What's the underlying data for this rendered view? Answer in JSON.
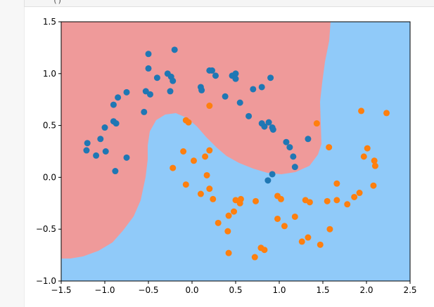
{
  "notebook": {
    "cell_code_fragment": "()"
  },
  "chart_data": {
    "type": "scatter",
    "xlim": [
      -1.5,
      2.5
    ],
    "ylim": [
      -1.0,
      1.5
    ],
    "x_ticks": [
      "−1.5",
      "−1.0",
      "−0.5",
      "0.0",
      "0.5",
      "1.0",
      "1.5",
      "2.0",
      "2.5"
    ],
    "x_tick_values": [
      -1.5,
      -1.0,
      -0.5,
      0.0,
      0.5,
      1.0,
      1.5,
      2.0,
      2.5
    ],
    "y_ticks": [
      "−1.0",
      "−0.5",
      "0.0",
      "0.5",
      "1.0",
      "1.5"
    ],
    "y_tick_values": [
      -1.0,
      -0.5,
      0.0,
      0.5,
      1.0,
      1.5
    ],
    "grid": false,
    "decision_regions": {
      "class0_color": "#ef9a9a",
      "class1_color": "#90caf9"
    },
    "series": [
      {
        "color": "#1f77b4",
        "points": [
          [
            -0.5,
            1.19
          ],
          [
            -0.2,
            1.23
          ],
          [
            -0.5,
            1.05
          ],
          [
            -0.4,
            0.96
          ],
          [
            -0.28,
            1.0
          ],
          [
            -0.24,
            0.97
          ],
          [
            -0.22,
            0.93
          ],
          [
            -0.53,
            0.83
          ],
          [
            -0.48,
            0.8
          ],
          [
            -0.25,
            0.83
          ],
          [
            -0.55,
            0.63
          ],
          [
            -0.75,
            0.82
          ],
          [
            -0.85,
            0.77
          ],
          [
            -0.9,
            0.7
          ],
          [
            -0.9,
            0.54
          ],
          [
            -0.87,
            0.52
          ],
          [
            -1.0,
            0.48
          ],
          [
            -1.05,
            0.37
          ],
          [
            -1.2,
            0.33
          ],
          [
            -1.21,
            0.26
          ],
          [
            -1.1,
            0.21
          ],
          [
            -0.99,
            0.25
          ],
          [
            -0.75,
            0.19
          ],
          [
            -0.88,
            0.06
          ],
          [
            0.1,
            0.87
          ],
          [
            0.11,
            0.84
          ],
          [
            0.2,
            1.03
          ],
          [
            0.23,
            1.03
          ],
          [
            0.27,
            0.98
          ],
          [
            0.38,
            0.78
          ],
          [
            0.46,
            0.98
          ],
          [
            0.5,
            1.0
          ],
          [
            0.5,
            0.95
          ],
          [
            0.55,
            0.72
          ],
          [
            0.65,
            0.59
          ],
          [
            0.7,
            0.85
          ],
          [
            0.8,
            0.87
          ],
          [
            0.9,
            0.96
          ],
          [
            0.8,
            0.52
          ],
          [
            0.83,
            0.49
          ],
          [
            0.88,
            0.53
          ],
          [
            0.92,
            0.48
          ],
          [
            0.93,
            0.46
          ],
          [
            1.08,
            0.34
          ],
          [
            1.12,
            0.29
          ],
          [
            1.16,
            0.2
          ],
          [
            1.18,
            0.1
          ],
          [
            1.33,
            0.37
          ],
          [
            0.92,
            0.03
          ],
          [
            0.87,
            -0.03
          ]
        ]
      },
      {
        "color": "#ff7f0e",
        "points": [
          [
            0.2,
            0.69
          ],
          [
            -0.07,
            0.55
          ],
          [
            -0.04,
            0.53
          ],
          [
            1.43,
            0.52
          ],
          [
            1.94,
            0.64
          ],
          [
            2.23,
            0.62
          ],
          [
            1.57,
            0.29
          ],
          [
            2.01,
            0.28
          ],
          [
            1.97,
            0.2
          ],
          [
            2.09,
            0.16
          ],
          [
            2.1,
            0.11
          ],
          [
            -0.1,
            0.25
          ],
          [
            0.2,
            0.26
          ],
          [
            0.15,
            0.2
          ],
          [
            0.02,
            0.16
          ],
          [
            -0.22,
            0.09
          ],
          [
            0.17,
            0.02
          ],
          [
            -0.07,
            -0.07
          ],
          [
            0.1,
            -0.16
          ],
          [
            0.2,
            -0.11
          ],
          [
            0.24,
            -0.21
          ],
          [
            0.5,
            -0.22
          ],
          [
            0.55,
            -0.25
          ],
          [
            0.56,
            -0.21
          ],
          [
            0.48,
            -0.33
          ],
          [
            0.42,
            -0.37
          ],
          [
            0.3,
            -0.44
          ],
          [
            0.41,
            -0.52
          ],
          [
            0.42,
            -0.73
          ],
          [
            0.73,
            -0.23
          ],
          [
            0.98,
            -0.18
          ],
          [
            1.02,
            -0.21
          ],
          [
            0.98,
            -0.4
          ],
          [
            1.06,
            -0.47
          ],
          [
            1.18,
            -0.38
          ],
          [
            1.3,
            -0.22
          ],
          [
            1.35,
            -0.24
          ],
          [
            1.55,
            -0.23
          ],
          [
            1.66,
            -0.06
          ],
          [
            1.66,
            -0.22
          ],
          [
            1.78,
            -0.26
          ],
          [
            1.86,
            -0.19
          ],
          [
            1.92,
            -0.15
          ],
          [
            2.08,
            -0.08
          ],
          [
            1.58,
            -0.5
          ],
          [
            1.33,
            -0.58
          ],
          [
            1.26,
            -0.62
          ],
          [
            1.47,
            -0.65
          ],
          [
            0.79,
            -0.68
          ],
          [
            0.83,
            -0.7
          ],
          [
            0.72,
            -0.77
          ]
        ]
      }
    ]
  }
}
